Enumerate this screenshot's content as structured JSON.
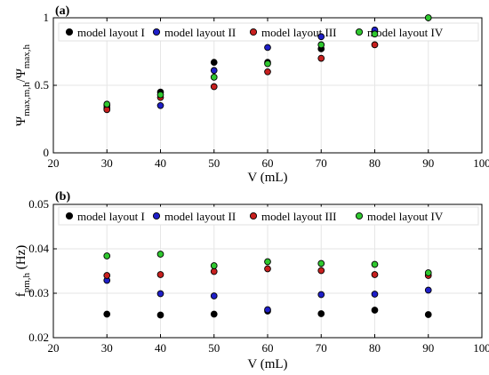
{
  "chart_data": [
    {
      "type": "scatter",
      "panel_label": "(a)",
      "xlabel": "V (mL)",
      "ylabel": {
        "base": "Ψ",
        "sub1": "max,m,h",
        "sep": "/Ψ",
        "sub2": "max,h"
      },
      "xlim": [
        20,
        100
      ],
      "ylim": [
        0,
        1
      ],
      "xticks": [
        "20",
        "30",
        "40",
        "50",
        "60",
        "70",
        "80",
        "90",
        "100"
      ],
      "yticks": [
        "0",
        "0.5",
        "1"
      ],
      "grid": true,
      "legend_placement": "top",
      "series": [
        {
          "name": "model layout I",
          "color": "#000000",
          "x": [
            30,
            40,
            50,
            60,
            70,
            80
          ],
          "y": [
            0.35,
            0.45,
            0.67,
            0.67,
            0.77,
            0.9
          ]
        },
        {
          "name": "model layout II",
          "color": "#1f1fc8",
          "x": [
            30,
            40,
            50,
            60,
            70,
            80
          ],
          "y": [
            0.33,
            0.35,
            0.61,
            0.78,
            0.86,
            0.91
          ]
        },
        {
          "name": "model layout III",
          "color": "#c8201f",
          "x": [
            30,
            40,
            50,
            60,
            70,
            80
          ],
          "y": [
            0.32,
            0.41,
            0.49,
            0.6,
            0.7,
            0.8
          ]
        },
        {
          "name": "model layout IV",
          "color": "#2fc82f",
          "x": [
            30,
            40,
            50,
            60,
            70,
            80,
            90
          ],
          "y": [
            0.36,
            0.43,
            0.56,
            0.66,
            0.8,
            0.88,
            1.0
          ]
        }
      ]
    },
    {
      "type": "scatter",
      "panel_label": "(b)",
      "xlabel": "V (mL)",
      "ylabel": {
        "base": "f",
        "sub1": "pm,h",
        "sep": " (Hz)",
        "sub2": ""
      },
      "xlim": [
        20,
        100
      ],
      "ylim": [
        0.02,
        0.05
      ],
      "xticks": [
        "20",
        "30",
        "40",
        "50",
        "60",
        "70",
        "80",
        "90",
        "100"
      ],
      "yticks": [
        "0.02",
        "0.03",
        "0.04",
        "0.05"
      ],
      "grid": true,
      "legend_placement": "top",
      "series": [
        {
          "name": "model layout I",
          "color": "#000000",
          "x": [
            30,
            40,
            50,
            60,
            70,
            80,
            90
          ],
          "y": [
            0.0253,
            0.0251,
            0.0253,
            0.026,
            0.0254,
            0.0262,
            0.0252
          ]
        },
        {
          "name": "model layout II",
          "color": "#1f1fc8",
          "x": [
            30,
            40,
            50,
            60,
            70,
            80,
            90
          ],
          "y": [
            0.0329,
            0.0299,
            0.0294,
            0.0263,
            0.0297,
            0.0298,
            0.0307
          ]
        },
        {
          "name": "model layout III",
          "color": "#c8201f",
          "x": [
            30,
            40,
            50,
            60,
            70,
            80,
            90
          ],
          "y": [
            0.034,
            0.0342,
            0.0349,
            0.0355,
            0.0351,
            0.0342,
            0.034
          ]
        },
        {
          "name": "model layout IV",
          "color": "#2fc82f",
          "x": [
            30,
            40,
            50,
            60,
            70,
            80,
            90
          ],
          "y": [
            0.0384,
            0.0388,
            0.0362,
            0.0371,
            0.0367,
            0.0365,
            0.0346
          ]
        }
      ]
    }
  ]
}
